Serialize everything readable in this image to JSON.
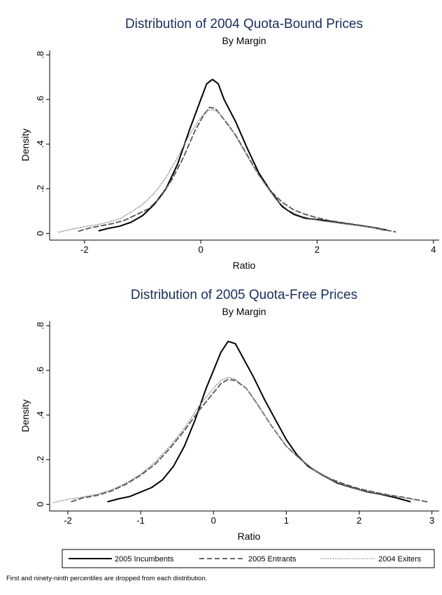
{
  "legend": {
    "entries": [
      {
        "label": "2005 Incumbents",
        "color": "#000000",
        "dash": "solid"
      },
      {
        "label": "2005 Entrants",
        "color": "#555555",
        "dash": "dashed"
      },
      {
        "label": "2004 Exiters",
        "color": "#888888",
        "dash": "dotted"
      }
    ]
  },
  "footnote": "First and ninety-ninth percentiles are dropped from each distribution.",
  "chart_data": [
    {
      "type": "line",
      "title": "Distribution of 2004 Quota-Bound Prices",
      "subtitle": "By Margin",
      "xlabel": "Ratio",
      "ylabel": "Density",
      "xlim": [
        -2.6,
        4.1
      ],
      "ylim": [
        -0.03,
        0.82
      ],
      "xticks": [
        {
          "v": -2,
          "label": "-2"
        },
        {
          "v": 0,
          "label": "0"
        },
        {
          "v": 2,
          "label": "2"
        },
        {
          "v": 4,
          "label": "4"
        }
      ],
      "yticks": [
        {
          "v": 0,
          "label": "0"
        },
        {
          "v": 0.2,
          "label": ".2"
        },
        {
          "v": 0.4,
          "label": ".4"
        },
        {
          "v": 0.6,
          "label": ".6"
        },
        {
          "v": 0.8,
          "label": ".8"
        }
      ],
      "grid": false,
      "series": [
        {
          "name": "2005 Incumbents",
          "style": "solid",
          "points": [
            [
              -1.75,
              0.012
            ],
            [
              -1.6,
              0.022
            ],
            [
              -1.4,
              0.032
            ],
            [
              -1.2,
              0.05
            ],
            [
              -1.0,
              0.08
            ],
            [
              -0.8,
              0.13
            ],
            [
              -0.6,
              0.2
            ],
            [
              -0.4,
              0.31
            ],
            [
              -0.2,
              0.46
            ],
            [
              0.0,
              0.6
            ],
            [
              0.1,
              0.67
            ],
            [
              0.2,
              0.69
            ],
            [
              0.3,
              0.67
            ],
            [
              0.4,
              0.6
            ],
            [
              0.6,
              0.5
            ],
            [
              0.8,
              0.38
            ],
            [
              1.0,
              0.27
            ],
            [
              1.2,
              0.19
            ],
            [
              1.4,
              0.12
            ],
            [
              1.6,
              0.085
            ],
            [
              1.8,
              0.068
            ],
            [
              2.0,
              0.062
            ],
            [
              2.2,
              0.055
            ],
            [
              2.4,
              0.047
            ],
            [
              2.6,
              0.04
            ],
            [
              2.8,
              0.033
            ],
            [
              3.0,
              0.025
            ],
            [
              3.2,
              0.015
            ]
          ]
        },
        {
          "name": "2005 Entrants",
          "style": "dashed",
          "points": [
            [
              -2.1,
              0.01
            ],
            [
              -1.9,
              0.025
            ],
            [
              -1.7,
              0.035
            ],
            [
              -1.5,
              0.045
            ],
            [
              -1.3,
              0.06
            ],
            [
              -1.1,
              0.085
            ],
            [
              -0.9,
              0.11
            ],
            [
              -0.7,
              0.16
            ],
            [
              -0.5,
              0.24
            ],
            [
              -0.3,
              0.34
            ],
            [
              -0.1,
              0.46
            ],
            [
              0.05,
              0.53
            ],
            [
              0.15,
              0.565
            ],
            [
              0.25,
              0.56
            ],
            [
              0.4,
              0.51
            ],
            [
              0.6,
              0.44
            ],
            [
              0.8,
              0.35
            ],
            [
              1.0,
              0.26
            ],
            [
              1.2,
              0.19
            ],
            [
              1.4,
              0.14
            ],
            [
              1.6,
              0.105
            ],
            [
              1.8,
              0.085
            ],
            [
              2.0,
              0.07
            ],
            [
              2.2,
              0.058
            ],
            [
              2.4,
              0.05
            ],
            [
              2.6,
              0.042
            ],
            [
              2.8,
              0.034
            ],
            [
              3.0,
              0.025
            ],
            [
              3.2,
              0.014
            ],
            [
              3.35,
              0.007
            ]
          ]
        },
        {
          "name": "2004 Exiters",
          "style": "dotted",
          "points": [
            [
              -2.45,
              0.005
            ],
            [
              -2.2,
              0.02
            ],
            [
              -2.0,
              0.03
            ],
            [
              -1.8,
              0.038
            ],
            [
              -1.6,
              0.05
            ],
            [
              -1.4,
              0.065
            ],
            [
              -1.2,
              0.095
            ],
            [
              -1.0,
              0.13
            ],
            [
              -0.8,
              0.18
            ],
            [
              -0.6,
              0.25
            ],
            [
              -0.4,
              0.34
            ],
            [
              -0.2,
              0.44
            ],
            [
              0.0,
              0.52
            ],
            [
              0.1,
              0.55
            ],
            [
              0.2,
              0.555
            ],
            [
              0.3,
              0.545
            ],
            [
              0.5,
              0.48
            ],
            [
              0.7,
              0.39
            ],
            [
              0.9,
              0.3
            ],
            [
              1.1,
              0.22
            ],
            [
              1.3,
              0.15
            ],
            [
              1.5,
              0.105
            ],
            [
              1.7,
              0.08
            ],
            [
              1.9,
              0.065
            ],
            [
              2.1,
              0.055
            ],
            [
              2.4,
              0.045
            ],
            [
              2.7,
              0.035
            ],
            [
              3.0,
              0.022
            ],
            [
              3.15,
              0.012
            ]
          ]
        }
      ]
    },
    {
      "type": "line",
      "title": "Distribution of 2005 Quota-Free Prices",
      "subtitle": "By Margin",
      "xlabel": "Ratio",
      "ylabel": "Density",
      "xlim": [
        -2.25,
        3.1
      ],
      "ylim": [
        -0.03,
        0.82
      ],
      "xticks": [
        {
          "v": -2,
          "label": "-2"
        },
        {
          "v": -1,
          "label": "-1"
        },
        {
          "v": 0,
          "label": "0"
        },
        {
          "v": 1,
          "label": "1"
        },
        {
          "v": 2,
          "label": "2"
        },
        {
          "v": 3,
          "label": "3"
        }
      ],
      "yticks": [
        {
          "v": 0,
          "label": "0"
        },
        {
          "v": 0.2,
          "label": ".2"
        },
        {
          "v": 0.4,
          "label": ".4"
        },
        {
          "v": 0.6,
          "label": ".6"
        },
        {
          "v": 0.8,
          "label": ".8"
        }
      ],
      "grid": false,
      "series": [
        {
          "name": "2005 Incumbents",
          "style": "solid",
          "points": [
            [
              -1.45,
              0.012
            ],
            [
              -1.3,
              0.025
            ],
            [
              -1.15,
              0.035
            ],
            [
              -1.0,
              0.055
            ],
            [
              -0.85,
              0.075
            ],
            [
              -0.7,
              0.11
            ],
            [
              -0.55,
              0.17
            ],
            [
              -0.4,
              0.26
            ],
            [
              -0.25,
              0.38
            ],
            [
              -0.1,
              0.52
            ],
            [
              0.0,
              0.6
            ],
            [
              0.1,
              0.68
            ],
            [
              0.2,
              0.73
            ],
            [
              0.3,
              0.72
            ],
            [
              0.4,
              0.66
            ],
            [
              0.55,
              0.57
            ],
            [
              0.7,
              0.47
            ],
            [
              0.85,
              0.38
            ],
            [
              1.0,
              0.29
            ],
            [
              1.15,
              0.22
            ],
            [
              1.3,
              0.17
            ],
            [
              1.5,
              0.13
            ],
            [
              1.7,
              0.095
            ],
            [
              1.9,
              0.075
            ],
            [
              2.1,
              0.057
            ],
            [
              2.3,
              0.045
            ],
            [
              2.5,
              0.03
            ],
            [
              2.7,
              0.012
            ]
          ]
        },
        {
          "name": "2005 Entrants",
          "style": "dashed",
          "points": [
            [
              -1.95,
              0.012
            ],
            [
              -1.8,
              0.028
            ],
            [
              -1.6,
              0.04
            ],
            [
              -1.4,
              0.06
            ],
            [
              -1.2,
              0.09
            ],
            [
              -1.0,
              0.13
            ],
            [
              -0.8,
              0.18
            ],
            [
              -0.6,
              0.25
            ],
            [
              -0.4,
              0.33
            ],
            [
              -0.2,
              0.42
            ],
            [
              0.0,
              0.5
            ],
            [
              0.1,
              0.54
            ],
            [
              0.2,
              0.56
            ],
            [
              0.3,
              0.555
            ],
            [
              0.45,
              0.52
            ],
            [
              0.6,
              0.45
            ],
            [
              0.8,
              0.35
            ],
            [
              1.0,
              0.26
            ],
            [
              1.2,
              0.2
            ],
            [
              1.4,
              0.15
            ],
            [
              1.6,
              0.115
            ],
            [
              1.8,
              0.09
            ],
            [
              2.0,
              0.07
            ],
            [
              2.2,
              0.055
            ],
            [
              2.4,
              0.042
            ],
            [
              2.6,
              0.032
            ],
            [
              2.8,
              0.02
            ],
            [
              2.95,
              0.01
            ]
          ]
        },
        {
          "name": "2004 Exiters",
          "style": "dotted",
          "points": [
            [
              -2.2,
              0.008
            ],
            [
              -2.0,
              0.022
            ],
            [
              -1.8,
              0.032
            ],
            [
              -1.6,
              0.045
            ],
            [
              -1.4,
              0.065
            ],
            [
              -1.2,
              0.095
            ],
            [
              -1.0,
              0.135
            ],
            [
              -0.8,
              0.19
            ],
            [
              -0.6,
              0.26
            ],
            [
              -0.4,
              0.34
            ],
            [
              -0.2,
              0.44
            ],
            [
              0.0,
              0.52
            ],
            [
              0.1,
              0.555
            ],
            [
              0.2,
              0.57
            ],
            [
              0.3,
              0.56
            ],
            [
              0.45,
              0.52
            ],
            [
              0.6,
              0.45
            ],
            [
              0.8,
              0.35
            ],
            [
              1.0,
              0.26
            ],
            [
              1.2,
              0.2
            ],
            [
              1.4,
              0.15
            ],
            [
              1.6,
              0.11
            ],
            [
              1.8,
              0.085
            ],
            [
              2.0,
              0.065
            ],
            [
              2.2,
              0.052
            ],
            [
              2.4,
              0.04
            ],
            [
              2.6,
              0.03
            ],
            [
              2.8,
              0.018
            ]
          ]
        }
      ]
    }
  ]
}
